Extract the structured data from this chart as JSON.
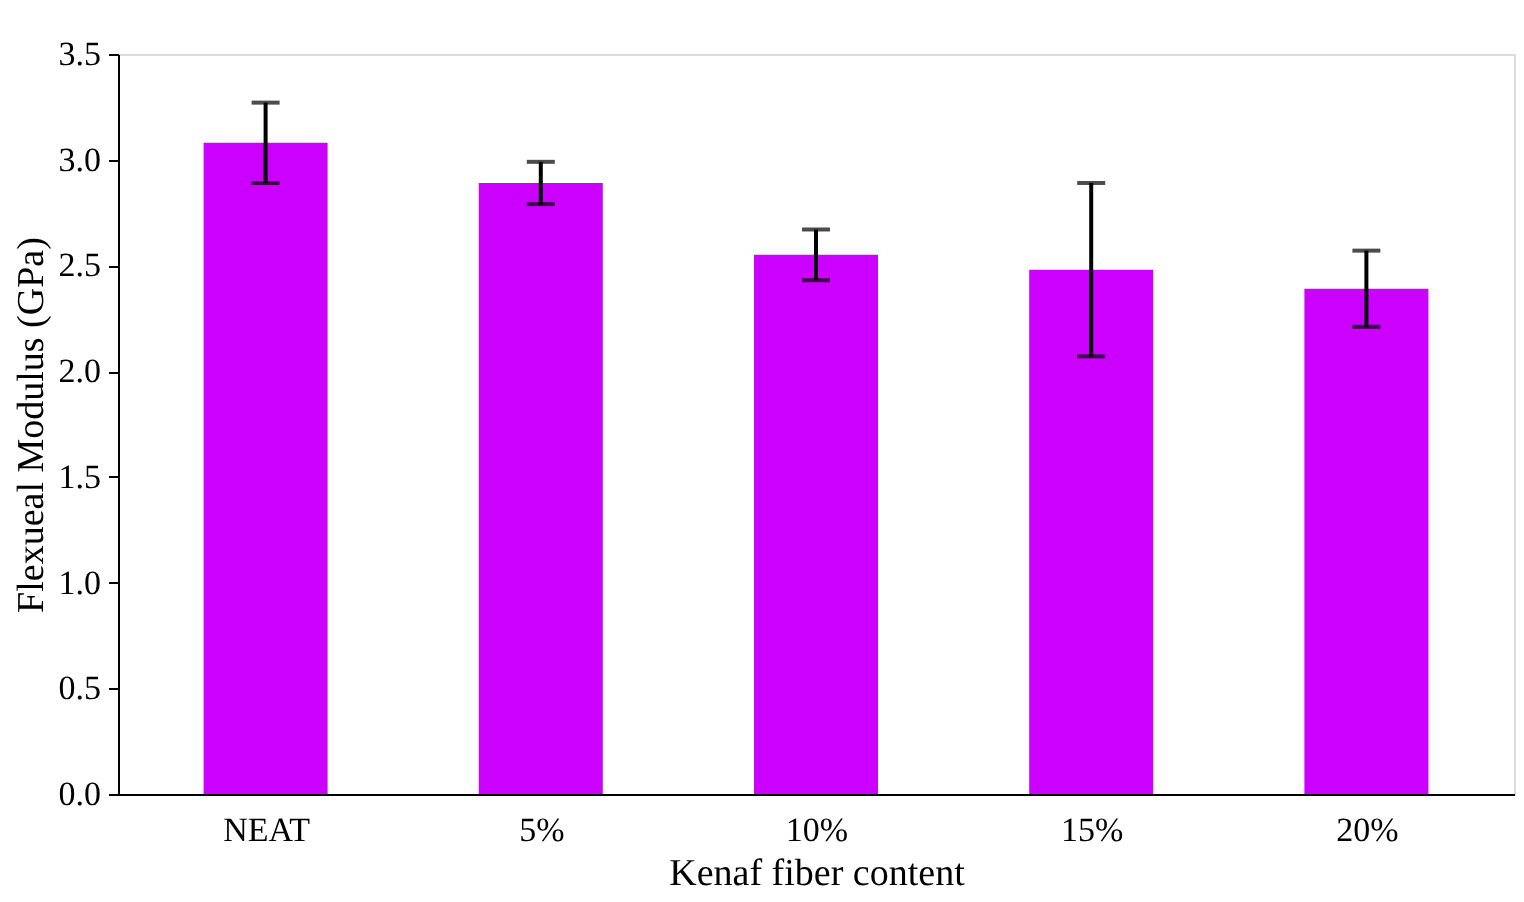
{
  "chart_data": {
    "type": "bar",
    "xlabel": "Kenaf fiber content",
    "ylabel": "Flexueal Modulus (GPa)",
    "categories": [
      "NEAT",
      "5%",
      "10%",
      "15%",
      "20%"
    ],
    "values": [
      3.08,
      2.89,
      2.55,
      2.48,
      2.39
    ],
    "errors": [
      0.19,
      0.1,
      0.12,
      0.41,
      0.18
    ],
    "color": "#cc00ff",
    "ylim": [
      0,
      3.5
    ],
    "yticks": [
      {
        "value": 0,
        "label": "0.0"
      },
      {
        "value": 0.5,
        "label": "0.5"
      },
      {
        "value": 1,
        "label": "1.0"
      },
      {
        "value": 1.5,
        "label": "1.5"
      },
      {
        "value": 2,
        "label": "2.0"
      },
      {
        "value": 2.5,
        "label": "2.5"
      },
      {
        "value": 3,
        "label": "3.0"
      },
      {
        "value": 3.5,
        "label": "3.5"
      }
    ],
    "grid": false
  }
}
